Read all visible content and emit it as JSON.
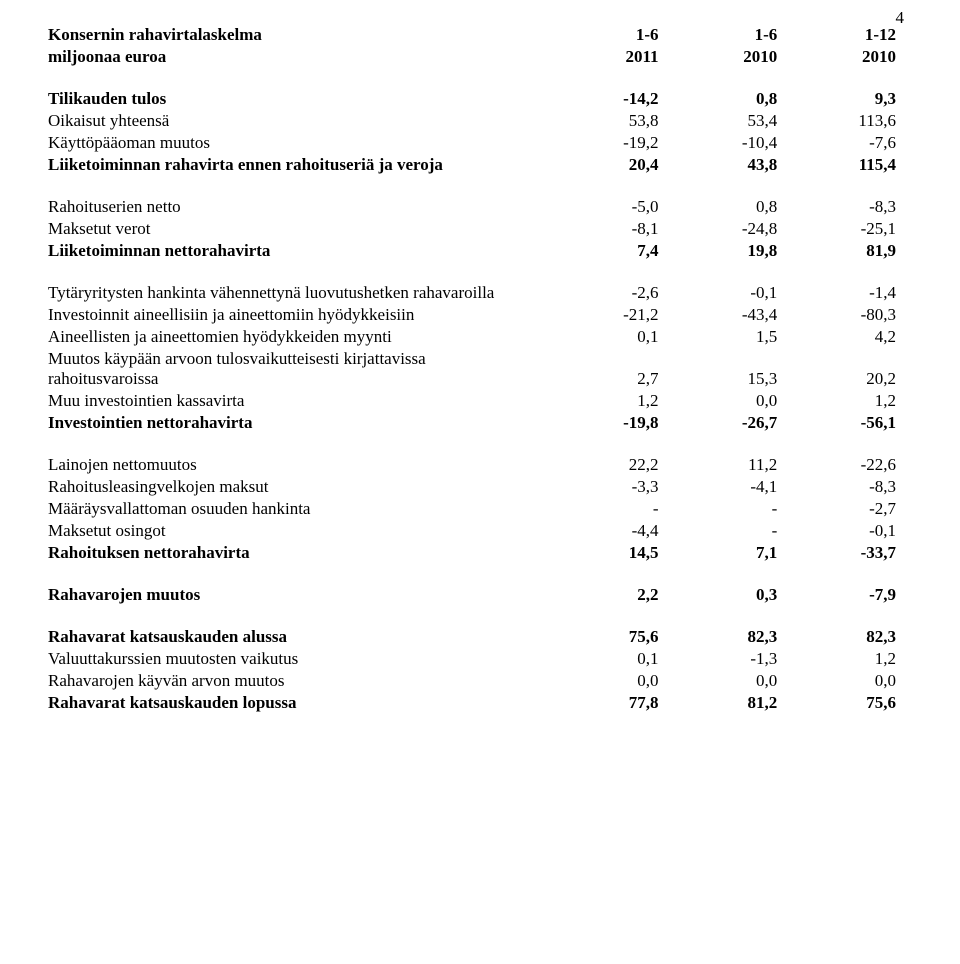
{
  "page": {
    "number": "4"
  },
  "header": {
    "title1": "Konsernin rahavirtalaskelma",
    "title2": "miljoonaa euroa",
    "col1a": "1-6",
    "col1b": "2011",
    "col2a": "1-6",
    "col2b": "2010",
    "col3a": "1-12",
    "col3b": "2010"
  },
  "rows": [
    {
      "bold": true,
      "label": "Tilikauden tulos",
      "c1": "-14,2",
      "c2": "0,8",
      "c3": "9,3"
    },
    {
      "bold": false,
      "label": "Oikaisut yhteensä",
      "c1": "53,8",
      "c2": "53,4",
      "c3": "113,6"
    },
    {
      "bold": false,
      "label": "Käyttöpääoman muutos",
      "c1": "-19,2",
      "c2": "-10,4",
      "c3": "-7,6"
    },
    {
      "bold": true,
      "label": "Liiketoiminnan rahavirta ennen rahoituseriä ja veroja",
      "c1": "20,4",
      "c2": "43,8",
      "c3": "115,4"
    },
    {
      "gap": true
    },
    {
      "bold": false,
      "label": "Rahoituserien netto",
      "c1": "-5,0",
      "c2": "0,8",
      "c3": "-8,3"
    },
    {
      "bold": false,
      "label": "Maksetut verot",
      "c1": "-8,1",
      "c2": "-24,8",
      "c3": "-25,1"
    },
    {
      "bold": true,
      "label": "Liiketoiminnan nettorahavirta",
      "c1": "7,4",
      "c2": "19,8",
      "c3": "81,9"
    },
    {
      "gap": true
    },
    {
      "bold": false,
      "label": "Tytäryritysten hankinta vähennettynä luovutushetken rahavaroilla",
      "c1": "-2,6",
      "c2": "-0,1",
      "c3": "-1,4"
    },
    {
      "bold": false,
      "label": "Investoinnit aineellisiin ja aineettomiin hyödykkeisiin",
      "c1": "-21,2",
      "c2": "-43,4",
      "c3": "-80,3"
    },
    {
      "bold": false,
      "label": "Aineellisten ja aineettomien hyödykkeiden myynti",
      "c1": "0,1",
      "c2": "1,5",
      "c3": "4,2"
    },
    {
      "bold": false,
      "label": "Muutos käypään arvoon tulosvaikutteisesti kirjattavissa rahoitusvaroissa",
      "c1": "2,7",
      "c2": "15,3",
      "c3": "20,2"
    },
    {
      "bold": false,
      "label": "Muu investointien kassavirta",
      "c1": "1,2",
      "c2": "0,0",
      "c3": "1,2"
    },
    {
      "bold": true,
      "label": "Investointien nettorahavirta",
      "c1": "-19,8",
      "c2": "-26,7",
      "c3": "-56,1"
    },
    {
      "gap": true
    },
    {
      "bold": false,
      "label": "Lainojen nettomuutos",
      "c1": "22,2",
      "c2": "11,2",
      "c3": "-22,6"
    },
    {
      "bold": false,
      "label": "Rahoitusleasingvelkojen maksut",
      "c1": "-3,3",
      "c2": "-4,1",
      "c3": "-8,3"
    },
    {
      "bold": false,
      "label": "Määräysvallattoman osuuden hankinta",
      "c1": "-",
      "c2": "-",
      "c3": "-2,7"
    },
    {
      "bold": false,
      "label": "Maksetut osingot",
      "c1": "-4,4",
      "c2": "-",
      "c3": "-0,1"
    },
    {
      "bold": true,
      "label": "Rahoituksen nettorahavirta",
      "c1": "14,5",
      "c2": "7,1",
      "c3": "-33,7"
    },
    {
      "gap": true
    },
    {
      "bold": true,
      "label": "Rahavarojen muutos",
      "c1": "2,2",
      "c2": "0,3",
      "c3": "-7,9"
    },
    {
      "gap": true
    },
    {
      "bold": true,
      "label": "Rahavarat katsauskauden alussa",
      "c1": "75,6",
      "c2": "82,3",
      "c3": "82,3"
    },
    {
      "bold": false,
      "label": "Valuuttakurssien muutosten vaikutus",
      "c1": "0,1",
      "c2": "-1,3",
      "c3": "1,2"
    },
    {
      "bold": false,
      "label": "Rahavarojen käyvän arvon muutos",
      "c1": "0,0",
      "c2": "0,0",
      "c3": "0,0"
    },
    {
      "bold": true,
      "label": "Rahavarat katsauskauden lopussa",
      "c1": "77,8",
      "c2": "81,2",
      "c3": "75,6"
    }
  ]
}
